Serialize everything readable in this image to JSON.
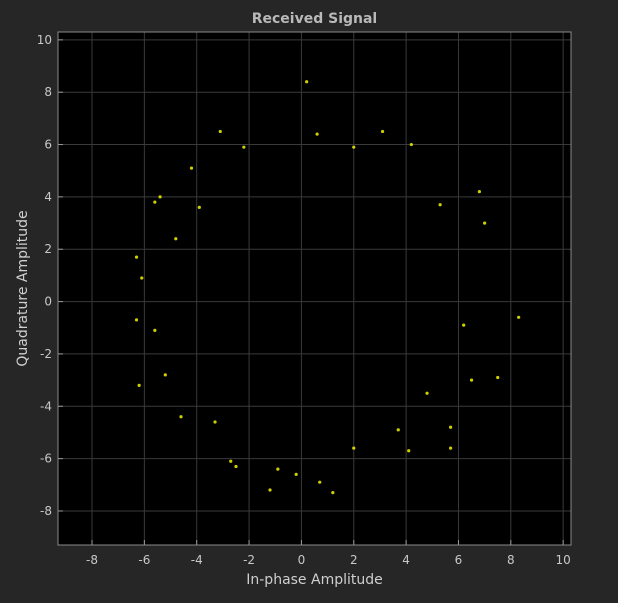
{
  "chart_data": {
    "type": "scatter",
    "title": "Received Signal",
    "xlabel": "In-phase Amplitude",
    "ylabel": "Quadrature Amplitude",
    "xlim": [
      -9.3,
      10.3
    ],
    "ylim": [
      -9.3,
      10.3
    ],
    "xticks": [
      -8,
      -6,
      -4,
      -2,
      0,
      2,
      4,
      6,
      8,
      10
    ],
    "yticks": [
      -8,
      -6,
      -4,
      -2,
      0,
      2,
      4,
      6,
      8,
      10
    ],
    "grid": true,
    "background": "#000000",
    "figure_background": "#262626",
    "marker_color": "#e6e600",
    "series": [
      {
        "points": [
          [
            0.2,
            8.4
          ],
          [
            -3.1,
            6.5
          ],
          [
            3.1,
            6.5
          ],
          [
            -2.2,
            5.9
          ],
          [
            2.0,
            5.9
          ],
          [
            0.6,
            6.4
          ],
          [
            4.2,
            6.0
          ],
          [
            -4.2,
            5.1
          ],
          [
            -5.6,
            3.8
          ],
          [
            -6.3,
            1.7
          ],
          [
            -6.1,
            0.9
          ],
          [
            -6.3,
            -0.7
          ],
          [
            -6.2,
            -3.2
          ],
          [
            -5.4,
            4.0
          ],
          [
            5.3,
            3.7
          ],
          [
            6.8,
            4.2
          ],
          [
            7.0,
            3.0
          ],
          [
            8.3,
            -0.6
          ],
          [
            6.2,
            -0.9
          ],
          [
            6.5,
            -3.0
          ],
          [
            5.7,
            -4.8
          ],
          [
            5.7,
            -5.6
          ],
          [
            4.1,
            -5.7
          ],
          [
            2.0,
            -5.6
          ],
          [
            0.7,
            -6.9
          ],
          [
            -0.2,
            -6.6
          ],
          [
            -1.2,
            -7.2
          ],
          [
            -2.7,
            -6.1
          ],
          [
            -2.5,
            -6.3
          ],
          [
            -0.9,
            -6.4
          ],
          [
            -4.6,
            -4.4
          ],
          [
            -5.2,
            -2.8
          ],
          [
            -5.6,
            -1.1
          ],
          [
            7.5,
            -2.9
          ],
          [
            1.2,
            -7.3
          ],
          [
            -4.8,
            2.4
          ],
          [
            -3.9,
            3.6
          ],
          [
            3.7,
            -4.9
          ],
          [
            4.8,
            -3.5
          ],
          [
            -3.3,
            -4.6
          ]
        ]
      }
    ]
  }
}
